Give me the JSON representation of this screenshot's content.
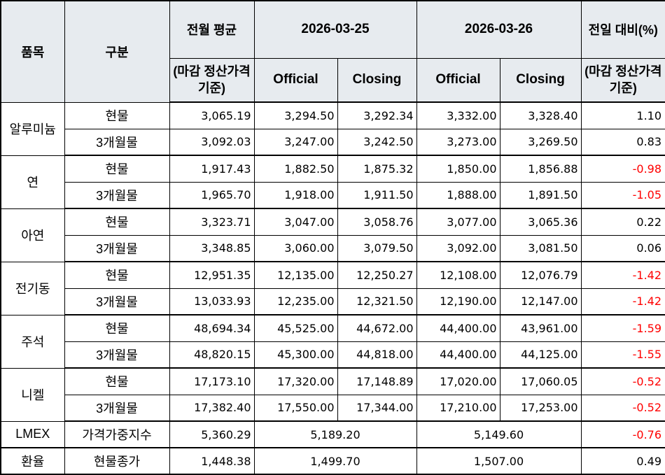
{
  "table": {
    "colors": {
      "header_bg": "#e7ebef",
      "negative": "#ff0000",
      "border": "#000000"
    },
    "header": {
      "item": "품목",
      "category": "구분",
      "prev_avg": "전월 평균",
      "prev_avg_note": "(마감 정산가격 기준)",
      "date1": "2026-03-25",
      "date2": "2026-03-26",
      "official": "Official",
      "closing": "Closing",
      "change": "전일 대비(%)",
      "change_note": "(마감 정산가격 기준)"
    },
    "groups": [
      {
        "item": "알루미늄",
        "rows": [
          {
            "category": "현물",
            "prev_avg": "3,065.19",
            "d1_official": "3,294.50",
            "d1_closing": "3,292.34",
            "d2_official": "3,332.00",
            "d2_closing": "3,328.40",
            "change": "1.10"
          },
          {
            "category": "3개월물",
            "prev_avg": "3,092.03",
            "d1_official": "3,247.00",
            "d1_closing": "3,242.50",
            "d2_official": "3,273.00",
            "d2_closing": "3,269.50",
            "change": "0.83"
          }
        ]
      },
      {
        "item": "연",
        "rows": [
          {
            "category": "현물",
            "prev_avg": "1,917.43",
            "d1_official": "1,882.50",
            "d1_closing": "1,875.32",
            "d2_official": "1,850.00",
            "d2_closing": "1,856.88",
            "change": "-0.98"
          },
          {
            "category": "3개월물",
            "prev_avg": "1,965.70",
            "d1_official": "1,918.00",
            "d1_closing": "1,911.50",
            "d2_official": "1,888.00",
            "d2_closing": "1,891.50",
            "change": "-1.05"
          }
        ]
      },
      {
        "item": "아연",
        "rows": [
          {
            "category": "현물",
            "prev_avg": "3,323.71",
            "d1_official": "3,047.00",
            "d1_closing": "3,058.76",
            "d2_official": "3,077.00",
            "d2_closing": "3,065.36",
            "change": "0.22"
          },
          {
            "category": "3개월물",
            "prev_avg": "3,348.85",
            "d1_official": "3,060.00",
            "d1_closing": "3,079.50",
            "d2_official": "3,092.00",
            "d2_closing": "3,081.50",
            "change": "0.06"
          }
        ]
      },
      {
        "item": "전기동",
        "rows": [
          {
            "category": "현물",
            "prev_avg": "12,951.35",
            "d1_official": "12,135.00",
            "d1_closing": "12,250.27",
            "d2_official": "12,108.00",
            "d2_closing": "12,076.79",
            "change": "-1.42"
          },
          {
            "category": "3개월물",
            "prev_avg": "13,033.93",
            "d1_official": "12,235.00",
            "d1_closing": "12,321.50",
            "d2_official": "12,190.00",
            "d2_closing": "12,147.00",
            "change": "-1.42"
          }
        ]
      },
      {
        "item": "주석",
        "rows": [
          {
            "category": "현물",
            "prev_avg": "48,694.34",
            "d1_official": "45,525.00",
            "d1_closing": "44,672.00",
            "d2_official": "44,400.00",
            "d2_closing": "43,961.00",
            "change": "-1.59"
          },
          {
            "category": "3개월물",
            "prev_avg": "48,820.15",
            "d1_official": "45,300.00",
            "d1_closing": "44,818.00",
            "d2_official": "44,400.00",
            "d2_closing": "44,125.00",
            "change": "-1.55"
          }
        ]
      },
      {
        "item": "니켈",
        "rows": [
          {
            "category": "현물",
            "prev_avg": "17,173.10",
            "d1_official": "17,320.00",
            "d1_closing": "17,148.89",
            "d2_official": "17,020.00",
            "d2_closing": "17,060.05",
            "change": "-0.52"
          },
          {
            "category": "3개월물",
            "prev_avg": "17,382.40",
            "d1_official": "17,550.00",
            "d1_closing": "17,344.00",
            "d2_official": "17,210.00",
            "d2_closing": "17,253.00",
            "change": "-0.52"
          }
        ]
      }
    ],
    "summary": [
      {
        "item": "LMEX",
        "category": "가격가중지수",
        "prev_avg": "5,360.29",
        "d1": "5,189.20",
        "d2": "5,149.60",
        "change": "-0.76"
      },
      {
        "item": "환율",
        "category": "현물종가",
        "prev_avg": "1,448.38",
        "d1": "1,499.70",
        "d2": "1,507.00",
        "change": "0.49"
      }
    ]
  }
}
